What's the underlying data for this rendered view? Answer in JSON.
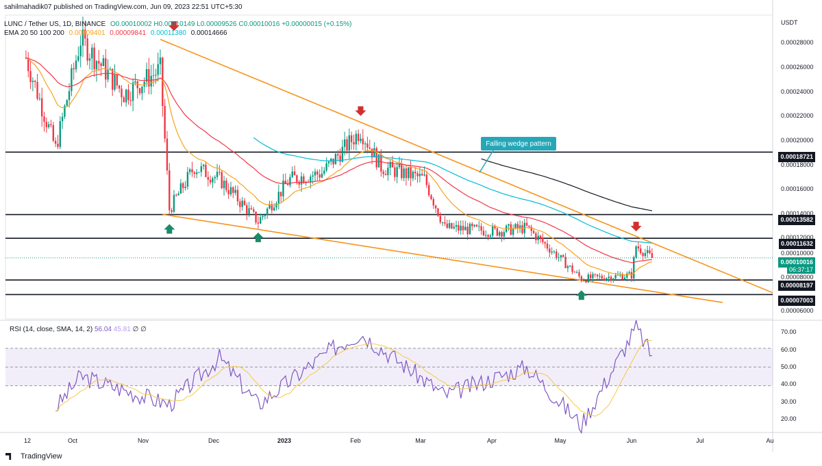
{
  "header": {
    "credit": "sahilmahadik07 published on TradingView.com, Jun 09, 2023 22:51 UTC+5:30",
    "symbol_line": "LUNC / Tether US, 1D, BINANCE",
    "ohlc": "O0.00010002 H0.00010149 L0.00009526 C0.00010016 +0.00000015 (+0.15%)",
    "ema_label": "EMA 20 50 100 200",
    "ema_values": [
      "0.00009401",
      "0.00009841",
      "0.00011380",
      "0.00014666"
    ]
  },
  "axis": {
    "currency": "USDT",
    "price_ticks": [
      "0.00028000",
      "0.00026000",
      "0.00024000",
      "0.00022000",
      "0.00020000",
      "0.00018000",
      "0.00016000",
      "0.00014000",
      "0.00012000",
      "0.00010000",
      "0.00008000",
      "0.00006000"
    ],
    "level_tags": [
      "0.00018721",
      "0.00013582",
      "0.00011632",
      "0.00008197",
      "0.00007003"
    ],
    "current_price": "0.00010016",
    "countdown": "06:37:17",
    "rsi_ticks": [
      "70.00",
      "60.00",
      "50.00",
      "40.00",
      "30.00",
      "20.00"
    ],
    "x_ticks": [
      "12",
      "Oct",
      "Nov",
      "Dec",
      "2023",
      "Feb",
      "Mar",
      "Apr",
      "May",
      "Jun",
      "Jul",
      "Au"
    ]
  },
  "annotation": {
    "label": "Falling wedge pattern"
  },
  "rsi": {
    "legend": "RSI (14, close, SMA, 14, 2)",
    "value": "56.04",
    "sma": "45.81",
    "extra": "∅ ∅"
  },
  "footer": {
    "brand": "TradingView"
  },
  "colors": {
    "up": "#089981",
    "down": "#f23645",
    "wedge": "#f7931a",
    "ema20": "#f7a21b",
    "ema50": "#f23645",
    "ema100": "#00bcd4",
    "ema200": "#131722",
    "rsi": "#7e57c2",
    "rsi_sma": "#f5c842"
  },
  "chart_data": {
    "type": "candlestick",
    "symbol": "LUNC / Tether US",
    "timeframe": "1D",
    "exchange": "BINANCE",
    "ylim": [
      5e-05,
      0.0003
    ],
    "horizontal_levels": [
      0.00018721,
      0.00013582,
      0.00011632,
      8.197e-05,
      7.003e-05
    ],
    "price_path": [
      {
        "date": "2022-09-07",
        "close": 0.000265
      },
      {
        "date": "2022-09-20",
        "close": 0.00019
      },
      {
        "date": "2022-10-01",
        "close": 0.00028
      },
      {
        "date": "2022-10-20",
        "close": 0.000235
      },
      {
        "date": "2022-11-05",
        "close": 0.000255
      },
      {
        "date": "2022-11-09",
        "close": 0.00014
      },
      {
        "date": "2022-11-20",
        "close": 0.000175
      },
      {
        "date": "2022-12-01",
        "close": 0.000165
      },
      {
        "date": "2022-12-18",
        "close": 0.00013
      },
      {
        "date": "2023-01-01",
        "close": 0.000165
      },
      {
        "date": "2023-01-15",
        "close": 0.00017
      },
      {
        "date": "2023-02-01",
        "close": 0.000205
      },
      {
        "date": "2023-02-10",
        "close": 0.000175
      },
      {
        "date": "2023-03-01",
        "close": 0.000165
      },
      {
        "date": "2023-03-10",
        "close": 0.000125
      },
      {
        "date": "2023-04-01",
        "close": 0.000122
      },
      {
        "date": "2023-04-15",
        "close": 0.000125
      },
      {
        "date": "2023-04-25",
        "close": 0.000108
      },
      {
        "date": "2023-05-09",
        "close": 8.3e-05
      },
      {
        "date": "2023-05-31",
        "close": 8.6e-05
      },
      {
        "date": "2023-06-02",
        "close": 0.00011
      },
      {
        "date": "2023-06-09",
        "close": 0.00010016
      }
    ],
    "rsi_path": [
      {
        "date": "2022-09-20",
        "value": 28
      },
      {
        "date": "2022-10-01",
        "value": 45
      },
      {
        "date": "2022-11-09",
        "value": 30
      },
      {
        "date": "2022-12-01",
        "value": 55
      },
      {
        "date": "2022-12-18",
        "value": 30
      },
      {
        "date": "2023-01-20",
        "value": 60
      },
      {
        "date": "2023-02-01",
        "value": 68
      },
      {
        "date": "2023-03-10",
        "value": 35
      },
      {
        "date": "2023-04-15",
        "value": 50
      },
      {
        "date": "2023-05-09",
        "value": 19
      },
      {
        "date": "2023-06-02",
        "value": 71
      },
      {
        "date": "2023-06-09",
        "value": 56.04
      }
    ],
    "rsi_ylim": [
      15,
      75
    ],
    "rsi_band": [
      40,
      60
    ]
  }
}
